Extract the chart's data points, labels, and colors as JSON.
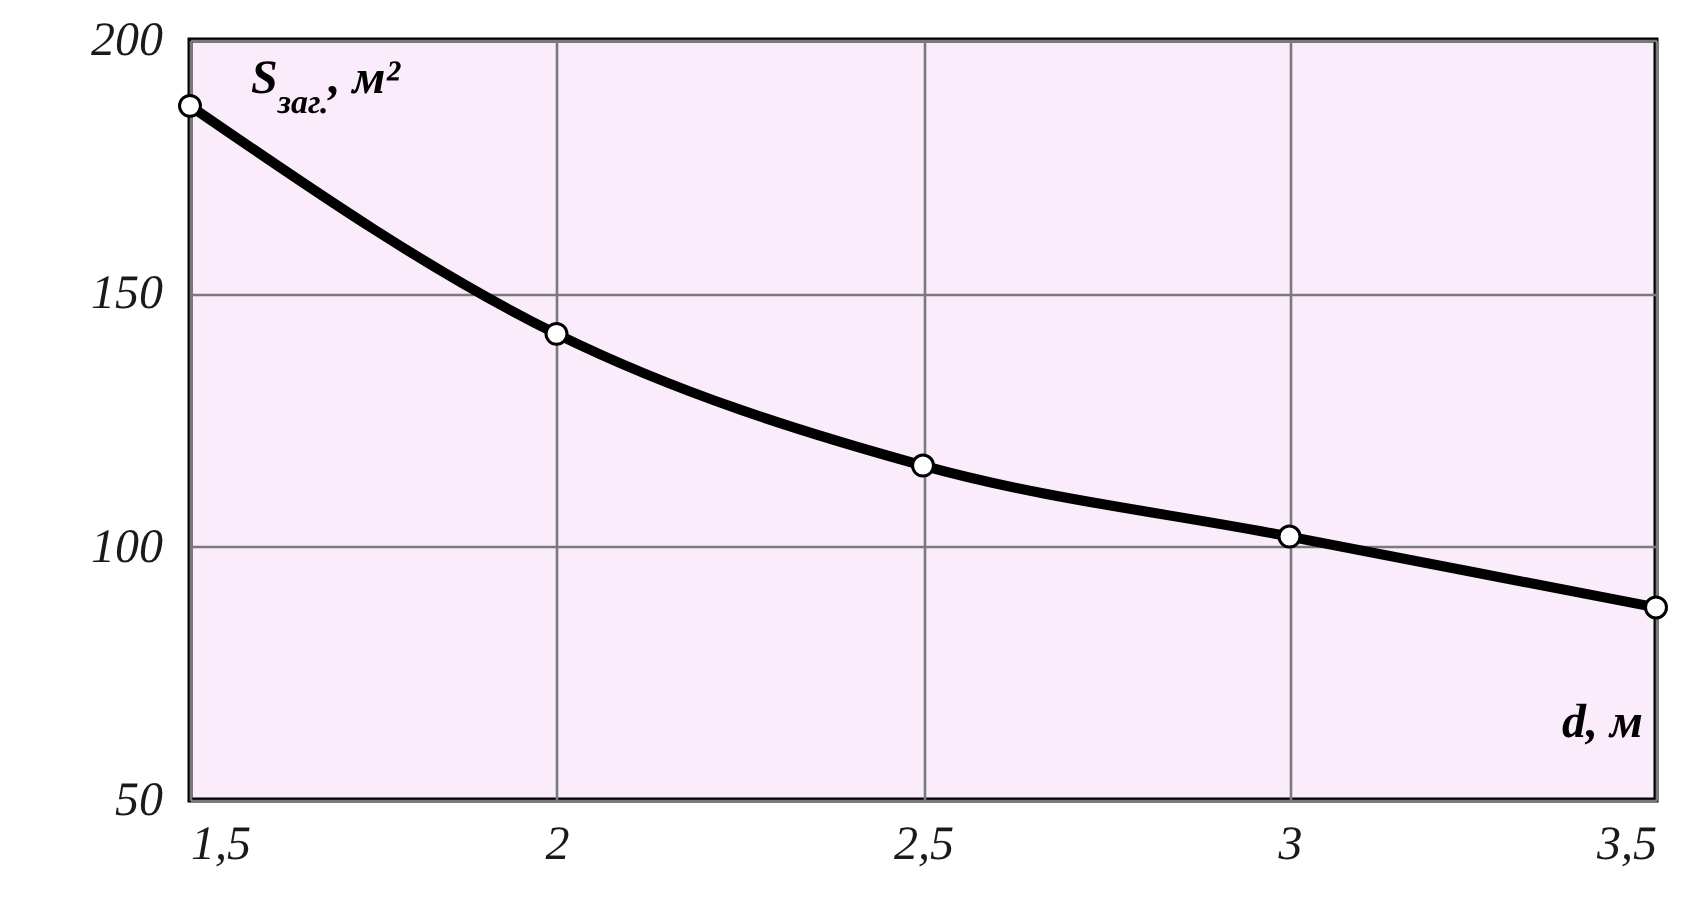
{
  "chart_data": {
    "type": "line",
    "xlabel": "d, м",
    "ylabel": "S$_{заг.}$, м²",
    "x": [
      1.5,
      2,
      2.5,
      3,
      3.5
    ],
    "series": [
      {
        "color": "#000000",
        "values": [
          187,
          142,
          116,
          102,
          88
        ]
      }
    ],
    "xlim": [
      1.5,
      3.5
    ],
    "ylim": [
      50,
      200
    ],
    "xticks": [
      {
        "value": 1.5,
        "label": "1,5"
      },
      2,
      {
        "value": 2.5,
        "label": "2,5"
      },
      3,
      {
        "value": 3.5,
        "label": "3,5"
      }
    ],
    "yticks": [
      50,
      100,
      150,
      200
    ],
    "grid": true,
    "marker": "circle",
    "line_style": "solid"
  }
}
